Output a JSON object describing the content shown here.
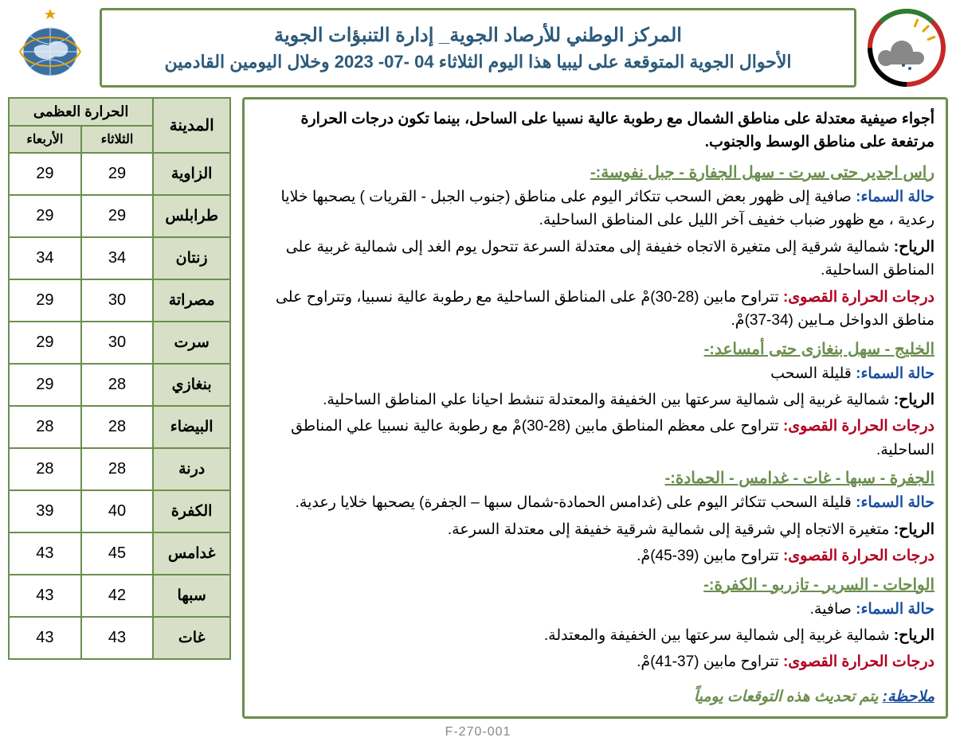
{
  "header": {
    "title": "المركز الوطني للأرصاد الجوية_ إدارة التنبؤات الجوية",
    "subtitle": "الأحوال الجوية المتوقعة على ليبيا هذا اليوم الثلاثاء 04 -07- 2023 وخلال اليومين القادمين"
  },
  "intro": "أجواء صيفية معتدلة على مناطق الشمال مع رطوبة عالية نسبيا على الساحل، بينما تكون درجات الحرارة مرتفعة على مناطق الوسط والجنوب.",
  "regions": [
    {
      "title": "راس اجدير حتى سرت - سهل الجفارة - جبل نفوسة:-",
      "sky": "صافية إلى ظهور بعض السحب تتكاثر اليوم على مناطق (جنوب الجبل - القريات ) يصحبها خلايا رعدية ، مع ظهور ضباب خفيف آخر الليل على المناطق الساحلية.",
      "wind": "شمالية شرقية إلى متغيرة الاتجاه خفيفة إلى معتدلة السرعة تتحول يوم الغد إلى شمالية غربية على المناطق الساحلية.",
      "temp": "تتراوح مابين (28-30)مْ على المناطق الساحلية مع رطوبة عالية نسبيا، وتتراوح على مناطق الدواخل مـابين (34-37)مْ."
    },
    {
      "title": "الخليج - سهل بنغازى حتى أمساعد:-",
      "sky": "قليلة السحب",
      "wind": "شمالية غربية إلى شمالية سرعتها بين الخفيفة والمعتدلة تنشط احيانا علي المناطق الساحلية.",
      "temp": "تتراوح  على معظم المناطق مابين (28-30)مْ مع رطوبة عالية نسبيا علي المناطق الساحلية."
    },
    {
      "title": "الجفرة - سبها - غات - غدامس - الحمادة:-",
      "sky": "قليلة السحب تتكاثر اليوم على (غدامس الحمادة-شمال سبها – الجفرة) يصحبها خلايا رعدية.",
      "wind": "متغيرة الاتجاه إلي شرقية إلى شمالية شرقية خفيفة إلى معتدلة السرعة.",
      "temp": "تتراوح مابين (39-45)مْ."
    },
    {
      "title": "الواحات - السرير - تازربو - الكفرة:-",
      "sky": "صافية.",
      "wind": "شمالية غربية إلى شمالية سرعتها بين الخفيفة والمعتدلة.",
      "temp": "تتراوح مابين (37-41)مْ."
    }
  ],
  "labels": {
    "sky": "حالة السماء:",
    "wind": "الرياح:",
    "temp": "درجات الحرارة القصوى:"
  },
  "note": {
    "label": "ملاحظة:",
    "text": "يتم تحديث هذه التوقعات يومياً"
  },
  "table": {
    "headers": {
      "city": "المدينة",
      "max": "الحرارة العظمى",
      "tue": "الثلاثاء",
      "wed": "الأربعاء"
    },
    "rows": [
      {
        "city": "الزاوية",
        "tue": "29",
        "wed": "29"
      },
      {
        "city": "طرابلس",
        "tue": "29",
        "wed": "29"
      },
      {
        "city": "زنتان",
        "tue": "34",
        "wed": "34"
      },
      {
        "city": "مصراتة",
        "tue": "30",
        "wed": "29"
      },
      {
        "city": "سرت",
        "tue": "30",
        "wed": "29"
      },
      {
        "city": "بنغازي",
        "tue": "28",
        "wed": "29"
      },
      {
        "city": "البيضاء",
        "tue": "28",
        "wed": "28"
      },
      {
        "city": "درنة",
        "tue": "28",
        "wed": "28"
      },
      {
        "city": "الكفرة",
        "tue": "40",
        "wed": "39"
      },
      {
        "city": "غدامس",
        "tue": "45",
        "wed": "43"
      },
      {
        "city": "سبها",
        "tue": "42",
        "wed": "43"
      },
      {
        "city": "غات",
        "tue": "43",
        "wed": "43"
      }
    ]
  },
  "footer": "F-270-001",
  "style": {
    "border_color": "#6b8e4e",
    "header_text_color": "#2c5a7a",
    "region_title_color": "#6b8e4e",
    "sky_label_color": "#1a4fa0",
    "temp_label_color": "#b00020",
    "table_header_bg": "#d7e0c6",
    "body_fontsize": 19
  }
}
